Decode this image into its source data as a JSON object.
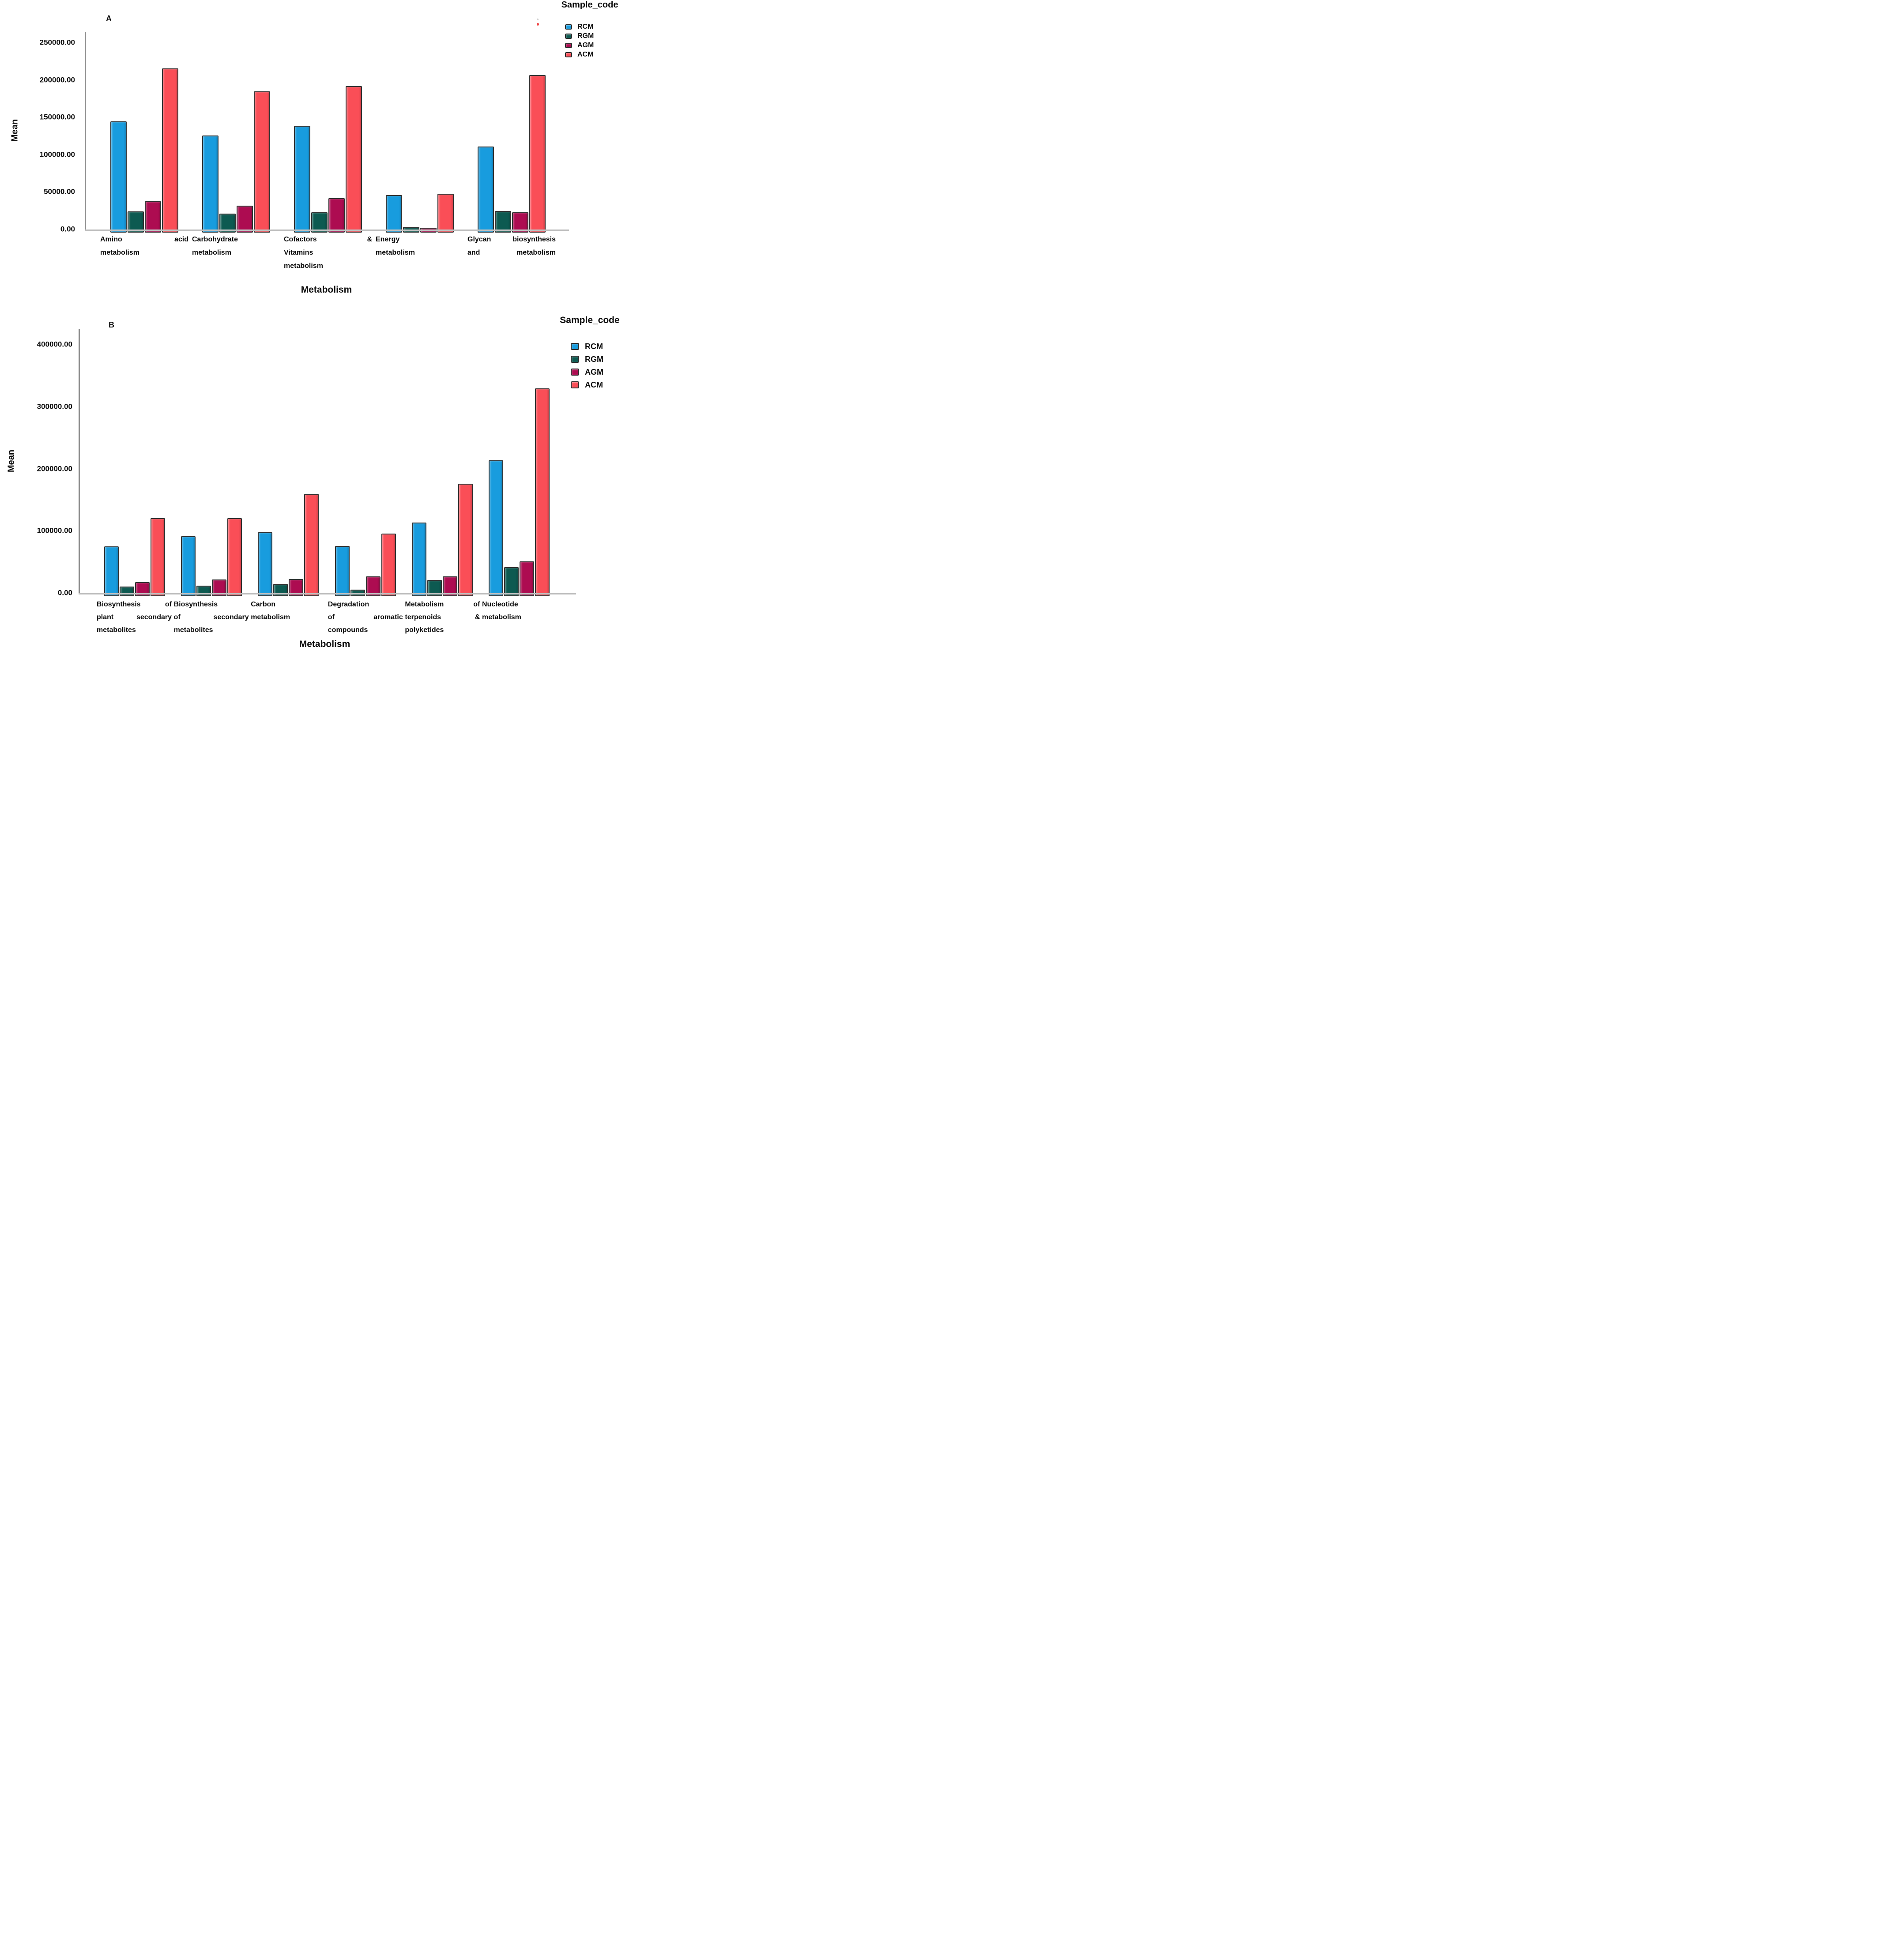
{
  "figure": {
    "background": "#ffffff",
    "text_color": "#0d0d0d",
    "panels": [
      "A",
      "B"
    ]
  },
  "chart_data": [
    {
      "id": "A",
      "type": "bar",
      "panel_label": "A",
      "xlabel": "Metabolism",
      "ylabel": "Mean",
      "ylim": [
        0,
        265000
      ],
      "grid": false,
      "yticks": [
        {
          "value": 250000,
          "label": "250000.00"
        },
        {
          "value": 200000,
          "label": "200000.00"
        },
        {
          "value": 150000,
          "label": "150000.00"
        },
        {
          "value": 100000,
          "label": "100000.00"
        },
        {
          "value": 50000,
          "label": "50000.00"
        },
        {
          "value": 0,
          "label": "0.00"
        }
      ],
      "legend": {
        "title": "Sample_code",
        "position": "top-right",
        "entries": [
          {
            "label": "RCM",
            "color": "#189CDE"
          },
          {
            "label": "RGM",
            "color": "#0D5A51"
          },
          {
            "label": "AGM",
            "color": "#AD0C51"
          },
          {
            "label": "ACM",
            "color": "#FA4E57"
          }
        ]
      },
      "categories": [
        {
          "name": "Amino acid metabolism",
          "lines": [
            "Amino acid",
            "metabolism"
          ]
        },
        {
          "name": "Carbohydrate metabolism",
          "lines": [
            "Carbohydrate",
            "metabolism"
          ]
        },
        {
          "name": "Cofactors & Vitamins metabolism",
          "lines": [
            "Cofactors &",
            "Vitamins",
            "metabolism"
          ]
        },
        {
          "name": "Energy metabolism",
          "lines": [
            "Energy",
            "metabolism"
          ]
        },
        {
          "name": "Glycan biosynthesis and metabolism",
          "lines": [
            "Glycan biosynthesis",
            "and metabolism"
          ]
        }
      ],
      "series": [
        {
          "name": "RCM",
          "color": "#189CDE",
          "values": [
            145000,
            126000,
            139000,
            46000,
            111000
          ]
        },
        {
          "name": "RGM",
          "color": "#0D5A51",
          "values": [
            24000,
            21000,
            23000,
            3500,
            25000
          ]
        },
        {
          "name": "AGM",
          "color": "#AD0C51",
          "values": [
            38000,
            32000,
            42000,
            2500,
            23000
          ]
        },
        {
          "name": "ACM",
          "color": "#FA4E57",
          "values": [
            216000,
            185000,
            192000,
            48000,
            207000
          ]
        }
      ]
    },
    {
      "id": "B",
      "type": "bar",
      "panel_label": "B",
      "xlabel": "Metabolism",
      "ylabel": "Mean",
      "ylim": [
        0,
        425000
      ],
      "grid": false,
      "yticks": [
        {
          "value": 400000,
          "label": "400000.00"
        },
        {
          "value": 300000,
          "label": "300000.00"
        },
        {
          "value": 200000,
          "label": "200000.00"
        },
        {
          "value": 100000,
          "label": "100000.00"
        },
        {
          "value": 0,
          "label": "0.00"
        }
      ],
      "legend": {
        "title": "Sample_code",
        "position": "top-right",
        "entries": [
          {
            "label": "RCM",
            "color": "#189CDE"
          },
          {
            "label": "RGM",
            "color": "#0D5A51"
          },
          {
            "label": "AGM",
            "color": "#AD0C51"
          },
          {
            "label": "ACM",
            "color": "#FA4E57"
          }
        ]
      },
      "categories": [
        {
          "name": "Biosynthesis of plant secondary metabolites",
          "lines": [
            "Biosynthesis of",
            "plant secondary",
            "metabolites"
          ]
        },
        {
          "name": "Biosynthesis of secondary metabolites",
          "lines": [
            "Biosynthesis",
            "of secondary",
            "metabolites"
          ]
        },
        {
          "name": "Carbon metabolism",
          "lines": [
            "Carbon",
            "metabolism"
          ]
        },
        {
          "name": "Degradation of aromatic compounds",
          "lines": [
            "Degradation",
            "of aromatic",
            "compounds"
          ]
        },
        {
          "name": "Metabolism of terpenoids & polyketides",
          "lines": [
            "Metabolism of",
            "terpenoids &",
            "polyketides"
          ]
        },
        {
          "name": "Nucleotide metabolism",
          "lines": [
            "Nucleotide",
            "metabolism"
          ]
        }
      ],
      "series": [
        {
          "name": "RCM",
          "color": "#189CDE",
          "values": [
            75000,
            92000,
            98000,
            76000,
            114000,
            214000
          ]
        },
        {
          "name": "RGM",
          "color": "#0D5A51",
          "values": [
            11000,
            12000,
            15000,
            6000,
            21000,
            42000
          ]
        },
        {
          "name": "AGM",
          "color": "#AD0C51",
          "values": [
            18000,
            22000,
            23000,
            27000,
            27000,
            51000
          ]
        },
        {
          "name": "ACM",
          "color": "#FA4E57",
          "values": [
            121000,
            121000,
            160000,
            96000,
            176000,
            330000
          ]
        }
      ]
    }
  ]
}
